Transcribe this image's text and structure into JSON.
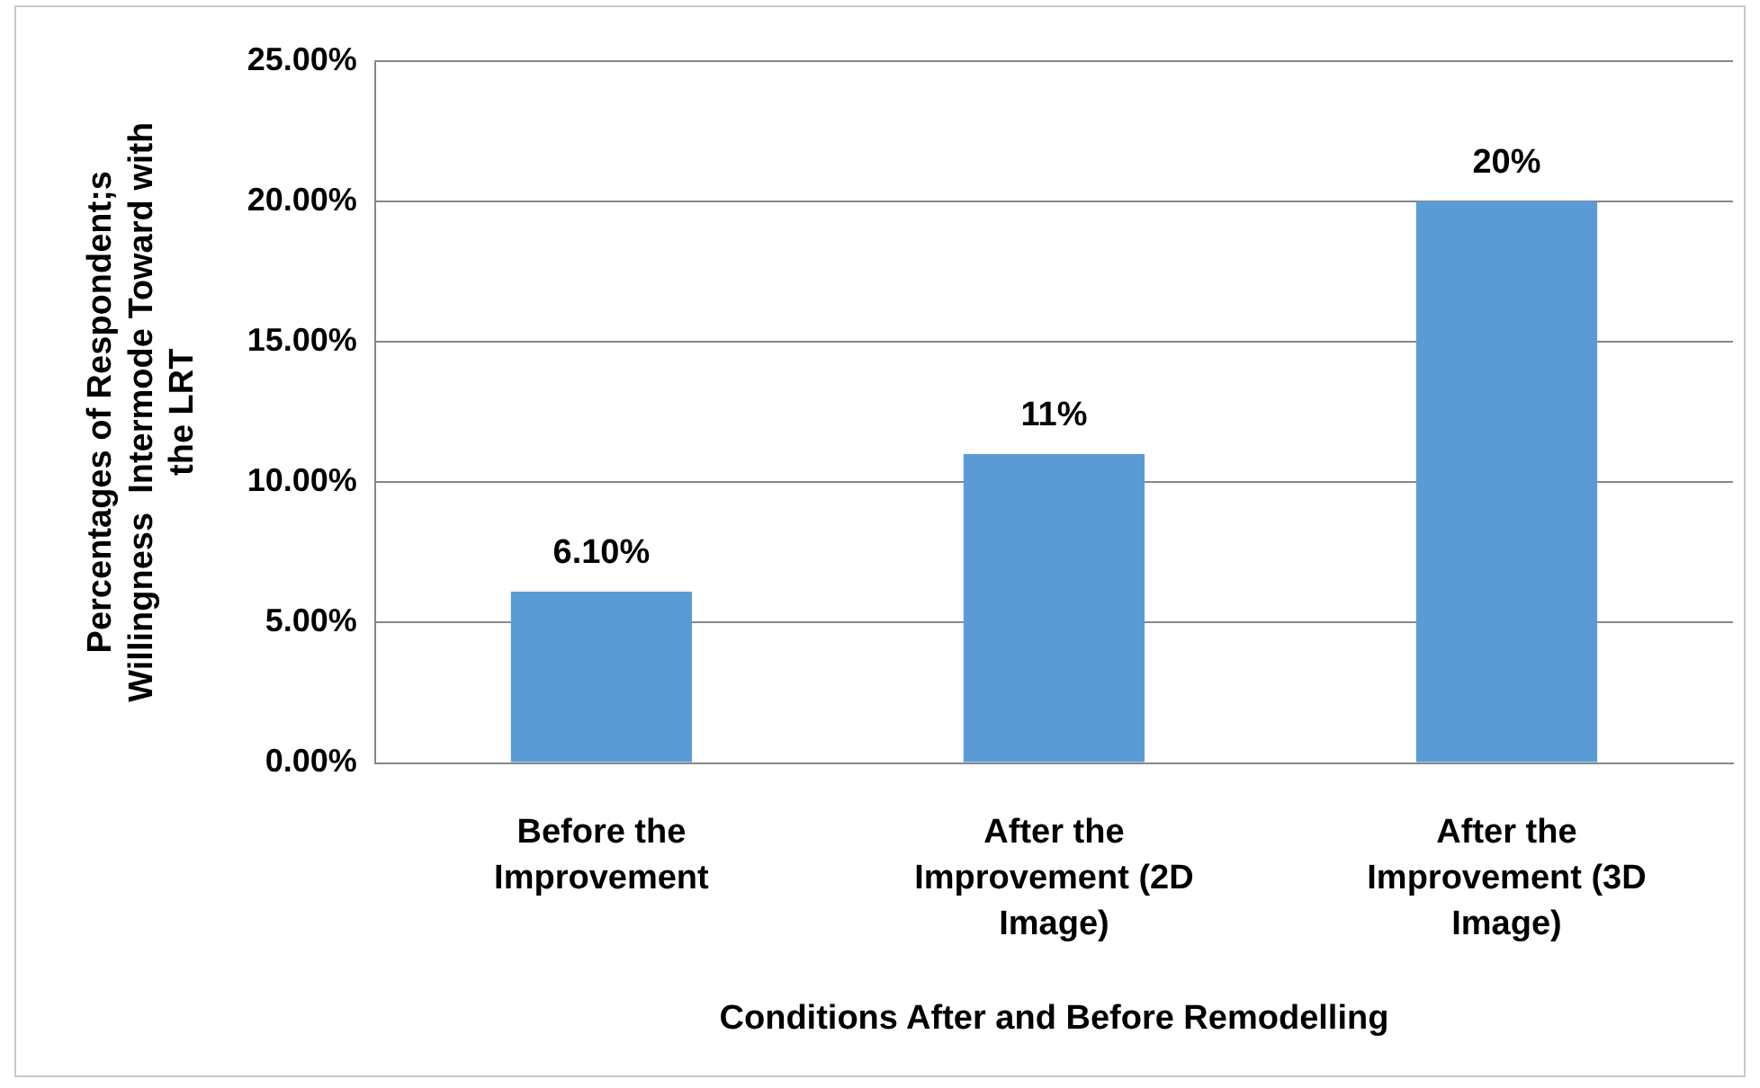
{
  "chart_data": {
    "type": "bar",
    "xlabel": "Conditions After and Before Remodelling",
    "ylabel": "Percentages of Respondent;s Willingness  Intermode Toward with the LRT",
    "categories": [
      "Before the Improvement",
      "After the Improvement (2D Image)",
      "After the Improvement (3D Image)"
    ],
    "values": [
      6.1,
      11,
      20
    ],
    "value_labels": [
      "6.10%",
      "11%",
      "20%"
    ],
    "color": "#5b9bd5",
    "ylim": [
      0,
      25
    ],
    "yticks": [
      {
        "value": 0,
        "label": "0.00%"
      },
      {
        "value": 5,
        "label": "5.00%"
      },
      {
        "value": 10,
        "label": "10.00%"
      },
      {
        "value": 15,
        "label": "15.00%"
      },
      {
        "value": 20,
        "label": "20.00%"
      },
      {
        "value": 25,
        "label": "25.00%"
      }
    ],
    "grid": "y",
    "legend": false
  }
}
